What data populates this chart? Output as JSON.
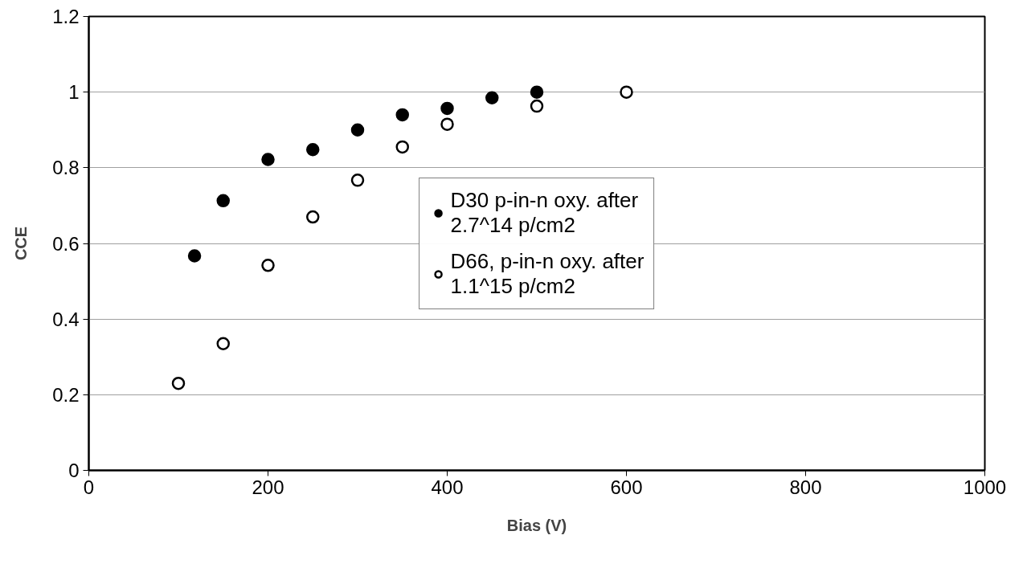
{
  "chart_data": {
    "type": "scatter",
    "xlabel": "Bias (V)",
    "ylabel": "CCE",
    "xlim": [
      0,
      1000
    ],
    "xticks": [
      0,
      200,
      400,
      600,
      800,
      1000
    ],
    "ylim": [
      0,
      1.2
    ],
    "yticks": [
      0,
      0.2,
      0.4,
      0.6,
      0.8,
      1,
      1.2
    ],
    "grid": "y",
    "legend": "center",
    "marker": "circle",
    "series": [
      {
        "name": "D30 p-in-n oxy. after 2.7^14 p/cm2",
        "color": "#000000",
        "x": [
          118,
          150,
          200,
          250,
          300,
          350,
          400,
          450,
          500
        ],
        "values": [
          0.567,
          0.713,
          0.822,
          0.848,
          0.9,
          0.94,
          0.957,
          0.985,
          1.0
        ]
      },
      {
        "name": "D66, p-in-n oxy. after 1.1^15 p/cm2",
        "color": "#ffffff",
        "x": [
          100,
          150,
          200,
          250,
          300,
          350,
          400,
          500,
          600
        ],
        "values": [
          0.23,
          0.335,
          0.542,
          0.67,
          0.767,
          0.855,
          0.915,
          0.963,
          1.0
        ]
      }
    ]
  }
}
